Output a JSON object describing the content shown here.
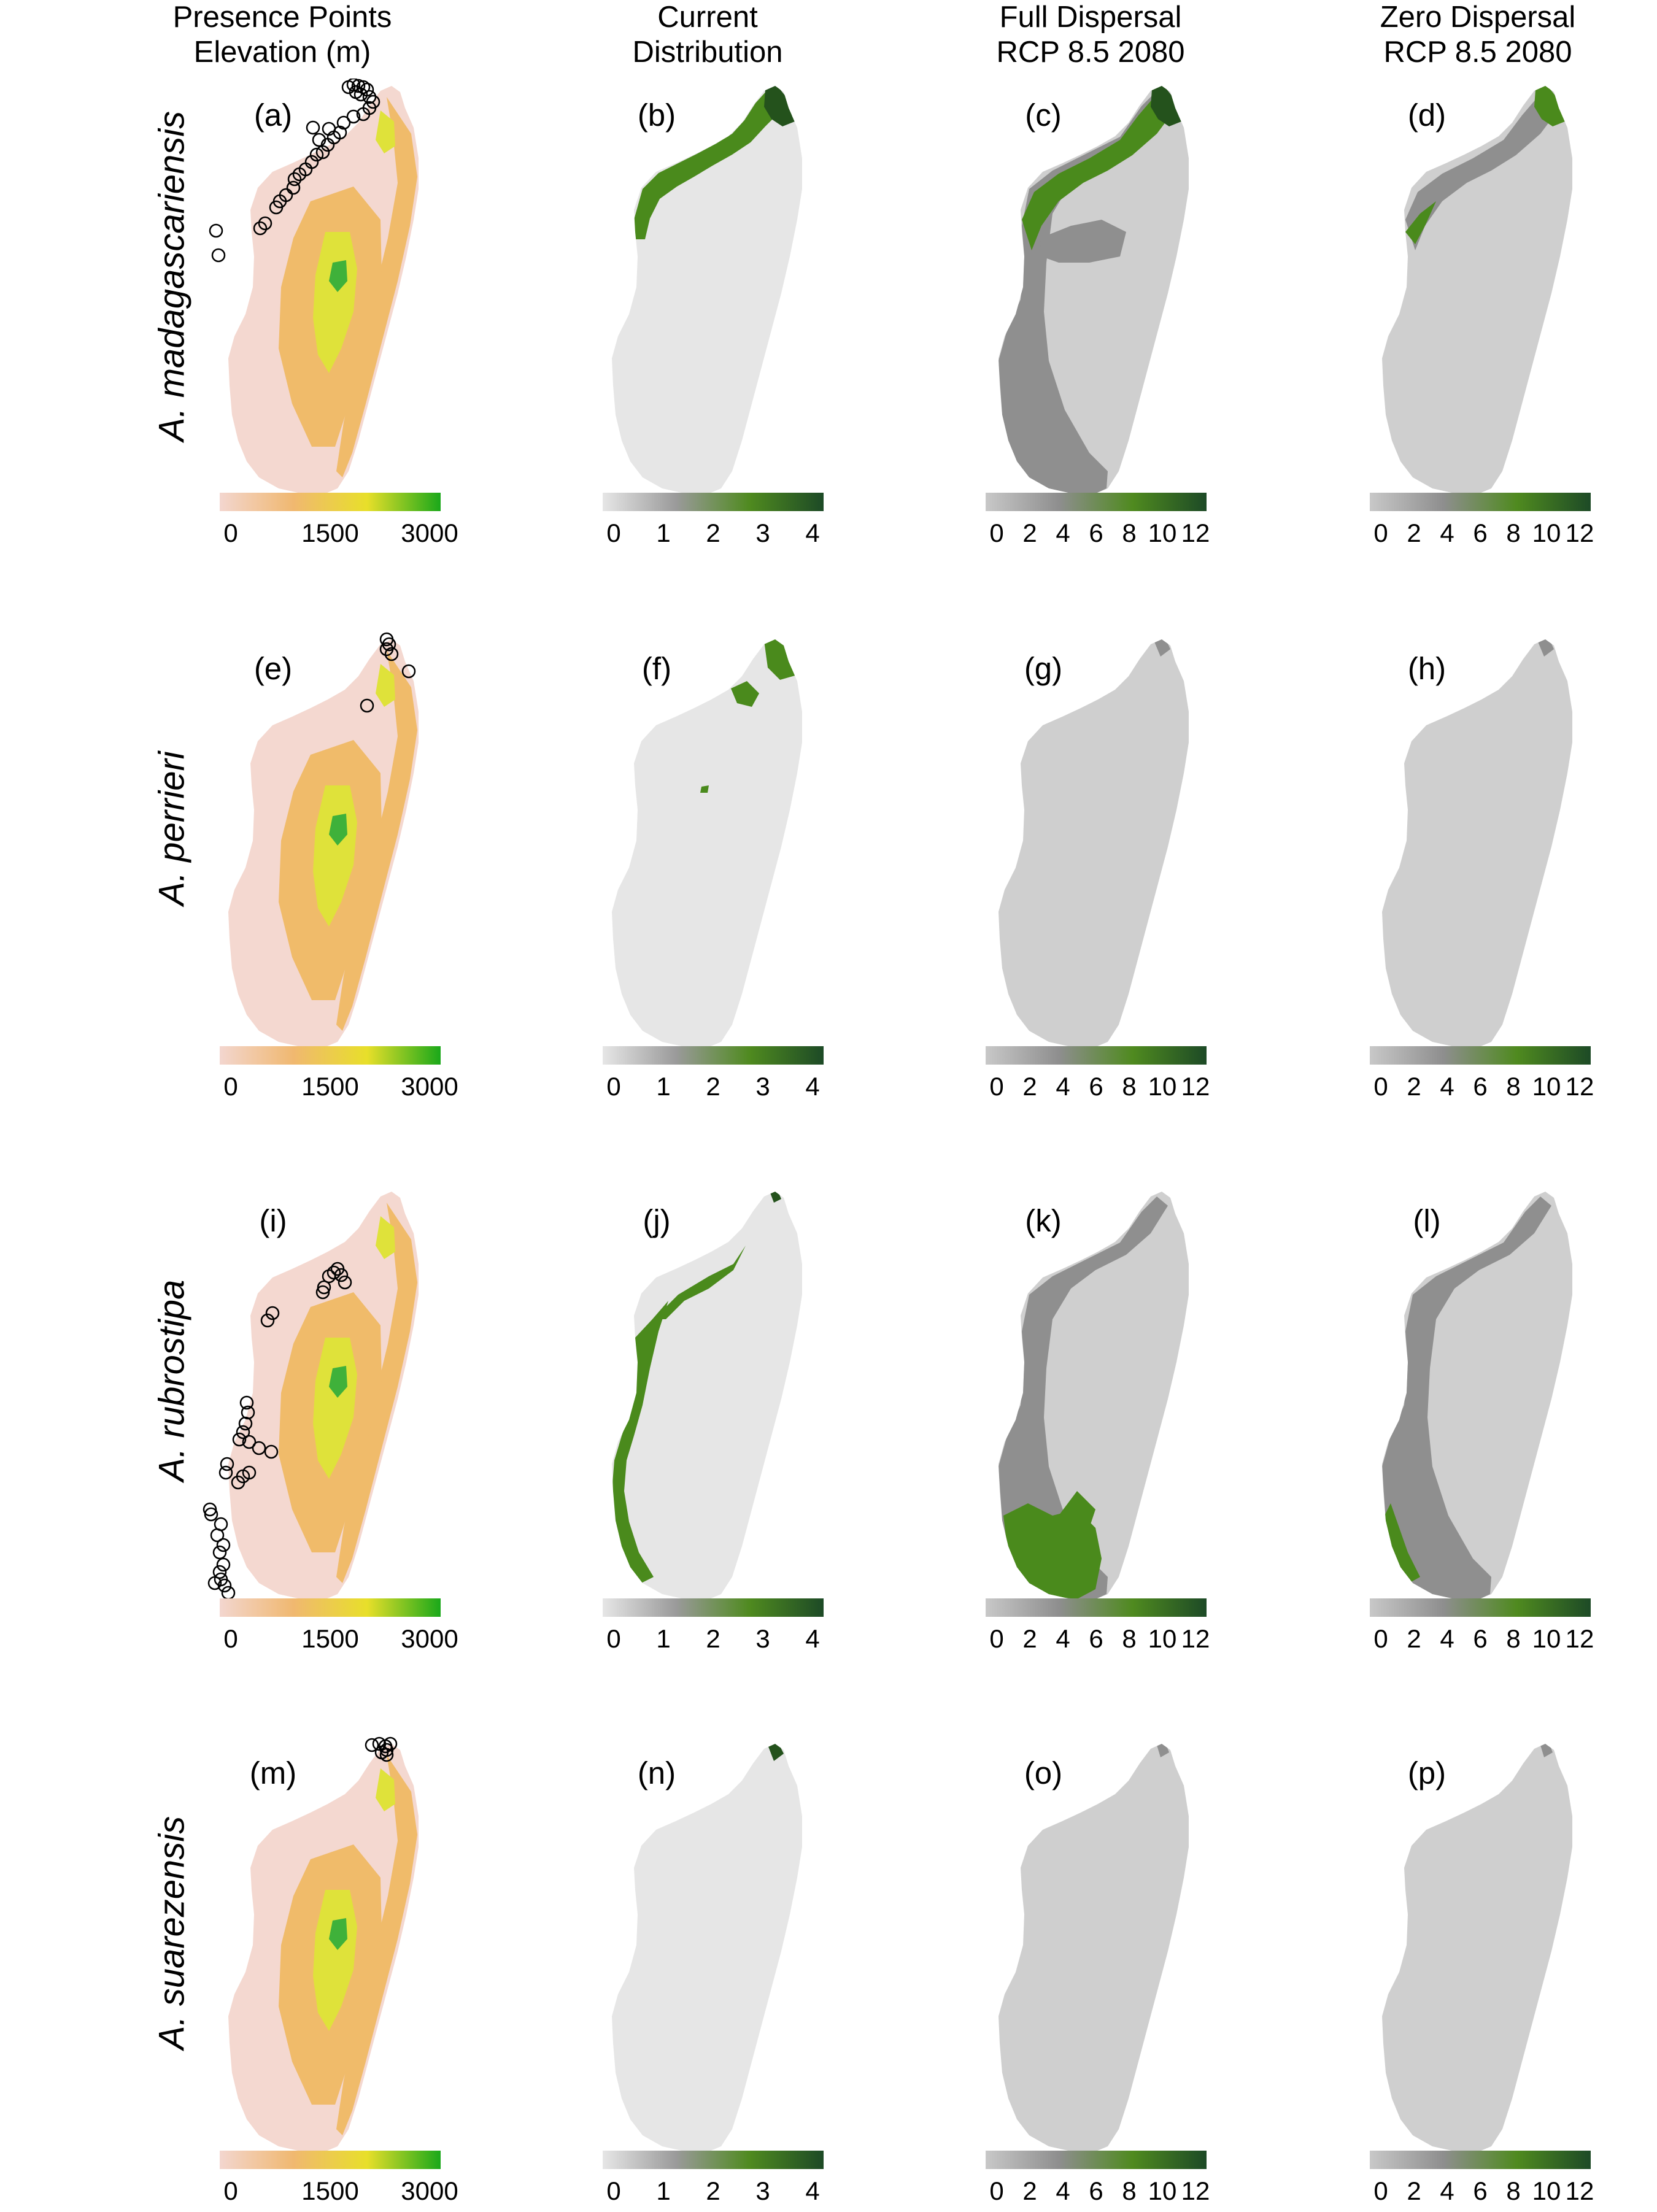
{
  "column_headers": [
    [
      "Presence Points",
      "Elevation (m)"
    ],
    [
      "Current",
      "Distribution"
    ],
    [
      "Full Dispersal",
      "RCP 8.5 2080"
    ],
    [
      "Zero Dispersal",
      "RCP 8.5 2080"
    ]
  ],
  "species": [
    "A. madagascariensis",
    "A. perrieri",
    "A. rubrostipa",
    "A. suarezensis"
  ],
  "panel_labels": [
    [
      "(a)",
      "(b)",
      "(c)",
      "(d)"
    ],
    [
      "(e)",
      "(f)",
      "(g)",
      "(h)"
    ],
    [
      "(i)",
      "(j)",
      "(k)",
      "(l)"
    ],
    [
      "(m)",
      "(n)",
      "(o)",
      "(p)"
    ]
  ],
  "legends": {
    "elevation": {
      "ticks": [
        "0",
        "1500",
        "3000"
      ],
      "colors": [
        "#f3d6cf",
        "#f0b870",
        "#e8df2a",
        "#1aa81a"
      ]
    },
    "current": {
      "ticks": [
        "0",
        "1",
        "2",
        "3",
        "4"
      ],
      "colors": [
        "#e6e6e6",
        "#9a9a9a",
        "#4f8a1f",
        "#1d4a26"
      ]
    },
    "future": {
      "ticks": [
        "0",
        "2",
        "4",
        "6",
        "8",
        "10",
        "12"
      ],
      "colors": [
        "#c8c8c8",
        "#8e8e8e",
        "#4f8a1f",
        "#1d4a26"
      ]
    }
  },
  "map_colors": {
    "elevation_low": "#f4d8d0",
    "elevation_mid": "#f0bb6a",
    "elevation_high": "#dfe23a",
    "elevation_peak": "#3fb13a",
    "current_background": "#e6e6e6",
    "future_background": "#cfcfcf",
    "future_loss": "#8f8f8f",
    "suitable_green": "#4a8a1c",
    "suitable_dark": "#24521c",
    "presence_point": "#000000"
  }
}
